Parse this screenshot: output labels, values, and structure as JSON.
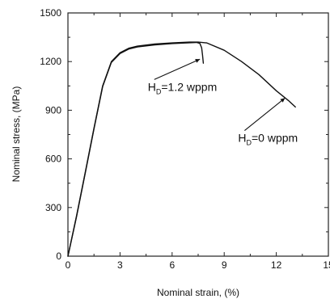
{
  "chart_data": {
    "type": "line",
    "title": "",
    "xlabel": "Nominal strain, (%)",
    "ylabel": "Nominal stress, (MPa)",
    "xlim": [
      0,
      15
    ],
    "ylim": [
      0,
      1500
    ],
    "xticks": [
      0,
      3,
      6,
      9,
      12,
      15
    ],
    "yticks": [
      0,
      300,
      600,
      900,
      1200,
      1500
    ],
    "series": [
      {
        "name": "",
        "x": [
          0,
          0.5,
          1,
          1.5,
          2,
          2.5,
          3,
          3.5,
          4,
          5,
          6,
          7,
          7.5,
          8,
          9,
          10,
          11,
          12,
          12.7,
          13.1
        ],
        "y": [
          0,
          250,
          520,
          790,
          1050,
          1200,
          1255,
          1282,
          1295,
          1308,
          1315,
          1320,
          1320,
          1315,
          1270,
          1200,
          1120,
          1020,
          960,
          920
        ]
      },
      {
        "name": "",
        "x": [
          0,
          0.5,
          1,
          1.5,
          2,
          2.5,
          3,
          3.5,
          4,
          5,
          6,
          7,
          7.4,
          7.6,
          7.7,
          7.75,
          7.8
        ],
        "y": [
          0,
          245,
          515,
          785,
          1045,
          1195,
          1250,
          1277,
          1290,
          1303,
          1311,
          1316,
          1318,
          1312,
          1285,
          1240,
          1190
        ]
      }
    ],
    "annotations": [
      {
        "main": "H",
        "sub": "D",
        "suffix": "=1.2 wppm",
        "arrow_to": [
          7.6,
          1215
        ],
        "text_at": [
          4.6,
          1020
        ]
      },
      {
        "main": "H",
        "sub": "D",
        "suffix": "=0 wppm",
        "arrow_to": [
          12.5,
          975
        ],
        "text_at": [
          9.8,
          705
        ]
      }
    ]
  }
}
